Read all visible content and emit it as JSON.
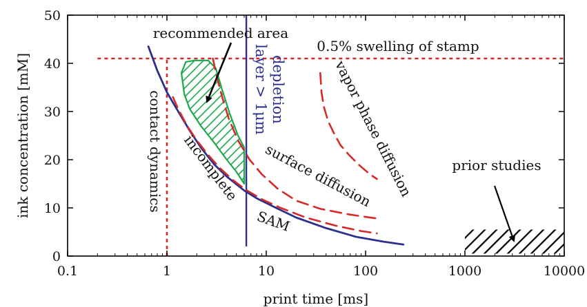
{
  "chart_data": {
    "type": "line",
    "title": "",
    "xlabel": "print time [ms]",
    "ylabel": "ink concentration [mM]",
    "x_scale": "log",
    "xlim": [
      0.1,
      10000
    ],
    "ylim": [
      0,
      50
    ],
    "xticks": [
      0.1,
      1,
      10,
      100,
      1000,
      10000
    ],
    "xtick_labels": [
      "0.1",
      "1",
      "10",
      "100",
      "1000",
      "10000"
    ],
    "yticks": [
      0,
      10,
      20,
      30,
      40,
      50
    ],
    "ytick_labels": [
      "0",
      "10",
      "20",
      "30",
      "40",
      "50"
    ],
    "grid": false,
    "series": [
      {
        "name": "incomplete SAM",
        "style": "solid",
        "color": "#2c2f8e",
        "x": [
          0.65,
          0.8,
          1.0,
          1.3,
          1.7,
          2.2,
          3.0,
          4.0,
          6.0,
          8.0,
          12,
          20,
          40,
          80,
          150,
          240
        ],
        "y": [
          43.5,
          38.5,
          34.0,
          30.0,
          26.0,
          22.5,
          19.0,
          16.5,
          13.6,
          12.0,
          10.2,
          8.0,
          5.8,
          4.0,
          3.0,
          2.4
        ]
      },
      {
        "name": "surface diffusion",
        "style": "dashed",
        "color": "#d42a2a",
        "x": [
          2.9,
          3.2,
          3.6,
          4.2,
          5.2,
          6.8,
          9.0,
          13,
          20,
          35,
          70,
          130
        ],
        "y": [
          41.0,
          37.0,
          33.0,
          28.5,
          24.0,
          20.0,
          17.0,
          14.0,
          11.5,
          9.8,
          8.6,
          7.8
        ]
      },
      {
        "name": "",
        "style": "dashed",
        "color": "#d42a2a",
        "x": [
          1.15,
          1.3,
          1.6,
          2.0,
          2.6,
          3.4,
          4.6,
          6.3,
          9.0,
          14,
          25,
          50,
          90,
          130
        ],
        "y": [
          33.0,
          30.5,
          27.0,
          24.0,
          21.0,
          18.3,
          15.8,
          13.7,
          11.8,
          10.0,
          8.0,
          6.3,
          5.2,
          4.7
        ]
      },
      {
        "name": "vapor phase diffusion",
        "style": "dashed",
        "color": "#d42a2a",
        "x": [
          35,
          36,
          38,
          42,
          48,
          56,
          68,
          85,
          110,
          130
        ],
        "y": [
          38.0,
          34.0,
          31.0,
          28.0,
          25.5,
          23.0,
          21.0,
          19.0,
          17.0,
          16.0
        ]
      }
    ],
    "reference_lines": [
      {
        "orientation": "horizontal",
        "value": 41,
        "x_from": 0.2,
        "x_to": 10000,
        "style": "dotted",
        "color": "#d42a2a",
        "label": "0.5% swelling of stamp"
      },
      {
        "orientation": "vertical",
        "value": 1.0,
        "y_from": 0,
        "y_to": 41,
        "style": "dotted",
        "color": "#d42a2a",
        "label": "contact dynamics"
      },
      {
        "orientation": "vertical",
        "value": 6.3,
        "y_from": 2,
        "y_to": 50,
        "style": "solid",
        "color": "#2c2f8e",
        "label": "depletion layer > 1μm"
      }
    ],
    "regions": [
      {
        "name": "recommended area",
        "fill": "hatched",
        "color": "#1aa84a",
        "x": [
          1.55,
          1.9,
          2.6,
          3.1,
          3.6,
          4.3,
          5.2,
          6.0,
          6.0,
          5.0,
          4.0,
          3.0,
          2.2,
          1.7,
          1.5,
          1.4
        ],
        "y": [
          40.3,
          40.6,
          40.6,
          39.0,
          34.5,
          29.5,
          25.0,
          22.5,
          15.0,
          17.5,
          20.0,
          23.5,
          27.0,
          30.5,
          33.5,
          38.0
        ]
      },
      {
        "name": "prior studies",
        "fill": "hatched",
        "color": "#000000",
        "x": [
          1000,
          10000
        ],
        "y": [
          0.5,
          5.5
        ]
      }
    ],
    "annotations": [
      {
        "text": "recommended area"
      },
      {
        "text": "0.5% swelling of stamp"
      },
      {
        "text": "depletion"
      },
      {
        "text": "layer > 1μm"
      },
      {
        "text": "vapor phase diffusion"
      },
      {
        "text": "contact dynamics"
      },
      {
        "text": "incomplete"
      },
      {
        "text": "surface diffusion"
      },
      {
        "text": "SAM"
      },
      {
        "text": "prior studies"
      }
    ]
  }
}
